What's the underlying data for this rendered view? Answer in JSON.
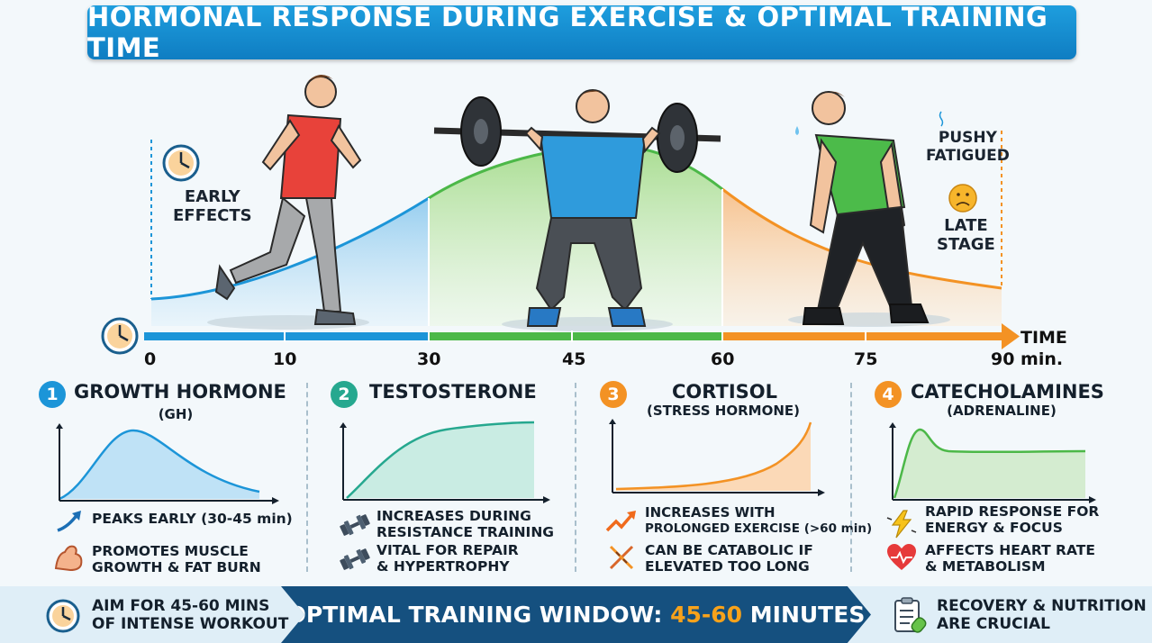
{
  "title": "HORMONAL RESPONSE DURING EXERCISE & OPTIMAL TRAINING TIME",
  "top": {
    "early_line1": "EARLY",
    "early_line2": "EFFECTS",
    "late_top1": "PUSHY",
    "late_top2": "FATIGUED",
    "late_line1": "LATE",
    "late_line2": "STAGE"
  },
  "timeline": {
    "ticks": [
      "0",
      "10",
      "30",
      "45",
      "60",
      "75"
    ],
    "end_label_top": "TIME",
    "end_label_bottom": "90 min."
  },
  "colors": {
    "blue": "#1c95d8",
    "green": "#4cb848",
    "orange": "#f39224",
    "teal": "#26a88f",
    "navy": "#15507f"
  },
  "panels": [
    {
      "number": "1",
      "title": "GROWTH HORMONE",
      "subtitle": "(GH)",
      "b1_icon": "trend-up-arrow-icon",
      "b1": [
        "PEAKS EARLY (30-45 min)"
      ],
      "b2_icon": "flexed-bicep-icon",
      "b2": [
        "PROMOTES MUSCLE",
        "GROWTH & FAT BURN"
      ]
    },
    {
      "number": "2",
      "title": "TESTOSTERONE",
      "subtitle": "",
      "b1_icon": "dumbbell-icon",
      "b1": [
        "INCREASES DURING",
        "RESISTANCE TRAINING"
      ],
      "b2_icon": "dumbbell-icon",
      "b2": [
        "VITAL FOR REPAIR",
        "& HYPERTROPHY"
      ]
    },
    {
      "number": "3",
      "title": "CORTISOL",
      "subtitle": "(STRESS HORMONE)",
      "b1_icon": "zigzag-up-arrow-icon",
      "b1": [
        "INCREASES WITH",
        "PROLONGED EXERCISE (>60 min)"
      ],
      "b2_icon": "dna-icon",
      "b2": [
        "CAN BE CATABOLIC IF",
        "ELEVATED TOO LONG"
      ]
    },
    {
      "number": "4",
      "title": "CATECHOLAMINES",
      "subtitle": "(ADRENALINE)",
      "b1_icon": "lightning-icon",
      "b1": [
        "RAPID RESPONSE FOR",
        "ENERGY & FOCUS"
      ],
      "b2_icon": "heart-pulse-icon",
      "b2": [
        "AFFECTS HEART RATE",
        "& METABOLISM"
      ]
    }
  ],
  "footer": {
    "left_line1": "AIM FOR 45-60 MINS",
    "left_line2": "OF INTENSE WORKOUT",
    "mid_prefix": "OPTIMAL TRAINING WINDOW: ",
    "mid_accent": "45-60",
    "mid_suffix": " MINUTES",
    "right_line1": "RECOVERY & NUTRITION",
    "right_line2": "ARE CRUCIAL"
  }
}
